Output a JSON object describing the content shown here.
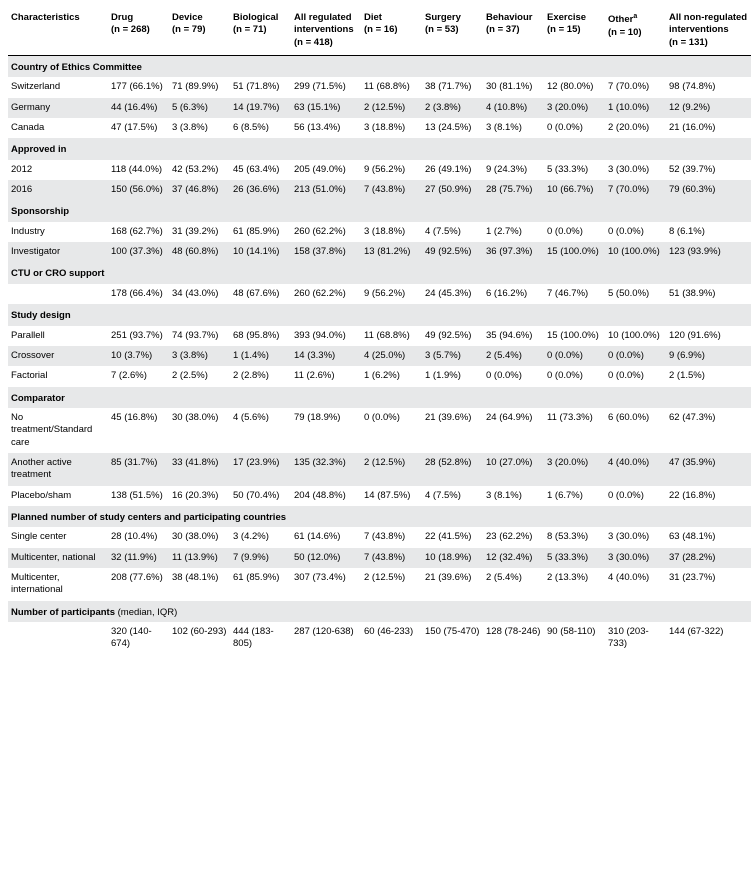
{
  "columns": [
    {
      "label": "Characteristics",
      "sub": ""
    },
    {
      "label": "Drug",
      "sub": "(n = 268)"
    },
    {
      "label": "Device",
      "sub": "(n = 79)"
    },
    {
      "label": "Biological",
      "sub": "(n = 71)"
    },
    {
      "label": "All regulated interventions",
      "sub": "(n = 418)"
    },
    {
      "label": "Diet",
      "sub": "(n = 16)"
    },
    {
      "label": "Surgery",
      "sub": "(n = 53)"
    },
    {
      "label": "Behaviour",
      "sub": "(n = 37)"
    },
    {
      "label": "Exercise",
      "sub": "(n = 15)"
    },
    {
      "label": "Other",
      "sub": "(n = 10)",
      "sup": "a"
    },
    {
      "label": "All non-regulated interventions",
      "sub": "(n = 131)"
    }
  ],
  "sections": [
    {
      "title": "Country of Ethics Committee",
      "rows": [
        {
          "alt": false,
          "cells": [
            "Switzerland",
            "177 (66.1%)",
            "71 (89.9%)",
            "51 (71.8%)",
            "299 (71.5%)",
            "11 (68.8%)",
            "38 (71.7%)",
            "30 (81.1%)",
            "12 (80.0%)",
            "7 (70.0%)",
            "98 (74.8%)"
          ]
        },
        {
          "alt": true,
          "cells": [
            "Germany",
            "44 (16.4%)",
            "5 (6.3%)",
            "14 (19.7%)",
            "63 (15.1%)",
            "2 (12.5%)",
            "2 (3.8%)",
            "4 (10.8%)",
            "3 (20.0%)",
            "1 (10.0%)",
            "12 (9.2%)"
          ]
        },
        {
          "alt": false,
          "cells": [
            "Canada",
            "47 (17.5%)",
            "3 (3.8%)",
            "6 (8.5%)",
            "56 (13.4%)",
            "3 (18.8%)",
            "13 (24.5%)",
            "3 (8.1%)",
            "0 (0.0%)",
            "2 (20.0%)",
            "21 (16.0%)"
          ]
        }
      ]
    },
    {
      "title": "Approved in",
      "rows": [
        {
          "alt": false,
          "cells": [
            "2012",
            "118 (44.0%)",
            "42 (53.2%)",
            "45 (63.4%)",
            "205 (49.0%)",
            "9 (56.2%)",
            "26 (49.1%)",
            "9 (24.3%)",
            "5 (33.3%)",
            "3 (30.0%)",
            "52 (39.7%)"
          ]
        },
        {
          "alt": true,
          "cells": [
            "2016",
            "150 (56.0%)",
            "37 (46.8%)",
            "26 (36.6%)",
            "213 (51.0%)",
            "7 (43.8%)",
            "27 (50.9%)",
            "28 (75.7%)",
            "10 (66.7%)",
            "7 (70.0%)",
            "79 (60.3%)"
          ]
        }
      ]
    },
    {
      "title": "Sponsorship",
      "rows": [
        {
          "alt": false,
          "cells": [
            "Industry",
            "168 (62.7%)",
            "31 (39.2%)",
            "61 (85.9%)",
            "260 (62.2%)",
            "3 (18.8%)",
            "4 (7.5%)",
            "1 (2.7%)",
            "0 (0.0%)",
            "0 (0.0%)",
            "8 (6.1%)"
          ]
        },
        {
          "alt": true,
          "cells": [
            "Investigator",
            "100 (37.3%)",
            "48 (60.8%)",
            "10 (14.1%)",
            "158 (37.8%)",
            "13 (81.2%)",
            "49 (92.5%)",
            "36 (97.3%)",
            "15 (100.0%)",
            "10 (100.0%)",
            "123 (93.9%)"
          ]
        }
      ]
    },
    {
      "title": "CTU or CRO support",
      "rows": [
        {
          "alt": false,
          "cells": [
            "",
            "178 (66.4%)",
            "34 (43.0%)",
            "48 (67.6%)",
            "260 (62.2%)",
            "9 (56.2%)",
            "24 (45.3%)",
            "6 (16.2%)",
            "7 (46.7%)",
            "5 (50.0%)",
            "51 (38.9%)"
          ]
        }
      ]
    },
    {
      "title": "Study design",
      "rows": [
        {
          "alt": false,
          "cells": [
            "Parallell",
            "251 (93.7%)",
            "74 (93.7%)",
            "68 (95.8%)",
            "393 (94.0%)",
            "11 (68.8%)",
            "49 (92.5%)",
            "35 (94.6%)",
            "15 (100.0%)",
            "10 (100.0%)",
            "120 (91.6%)"
          ]
        },
        {
          "alt": true,
          "cells": [
            "Crossover",
            "10 (3.7%)",
            "3 (3.8%)",
            "1 (1.4%)",
            "14 (3.3%)",
            "4 (25.0%)",
            "3 (5.7%)",
            "2 (5.4%)",
            "0 (0.0%)",
            "0 (0.0%)",
            "9 (6.9%)"
          ]
        },
        {
          "alt": false,
          "cells": [
            "Factorial",
            "7 (2.6%)",
            "2 (2.5%)",
            "2 (2.8%)",
            "11 (2.6%)",
            "1 (6.2%)",
            "1 (1.9%)",
            "0 (0.0%)",
            "0 (0.0%)",
            "0 (0.0%)",
            "2 (1.5%)"
          ]
        }
      ]
    },
    {
      "title": "Comparator",
      "rows": [
        {
          "alt": false,
          "cells": [
            "No treatment/Standard care",
            "45 (16.8%)",
            "30 (38.0%)",
            "4 (5.6%)",
            "79 (18.9%)",
            "0 (0.0%)",
            "21 (39.6%)",
            "24 (64.9%)",
            "11 (73.3%)",
            "6 (60.0%)",
            "62 (47.3%)"
          ]
        },
        {
          "alt": true,
          "cells": [
            "Another active treatment",
            "85 (31.7%)",
            "33 (41.8%)",
            "17 (23.9%)",
            "135 (32.3%)",
            "2 (12.5%)",
            "28 (52.8%)",
            "10 (27.0%)",
            "3 (20.0%)",
            "4 (40.0%)",
            "47 (35.9%)"
          ]
        },
        {
          "alt": false,
          "cells": [
            "Placebo/sham",
            "138 (51.5%)",
            "16 (20.3%)",
            "50 (70.4%)",
            "204 (48.8%)",
            "14 (87.5%)",
            "4 (7.5%)",
            "3 (8.1%)",
            "1 (6.7%)",
            "0 (0.0%)",
            "22 (16.8%)"
          ]
        }
      ]
    },
    {
      "title": "Planned number of study centers and participating countries",
      "rows": [
        {
          "alt": false,
          "cells": [
            "Single center",
            "28 (10.4%)",
            "30 (38.0%)",
            "3 (4.2%)",
            "61 (14.6%)",
            "7 (43.8%)",
            "22 (41.5%)",
            "23 (62.2%)",
            "8 (53.3%)",
            "3 (30.0%)",
            "63 (48.1%)"
          ]
        },
        {
          "alt": true,
          "cells": [
            "Multicenter, national",
            "32 (11.9%)",
            "11 (13.9%)",
            "7 (9.9%)",
            "50 (12.0%)",
            "7 (43.8%)",
            "10 (18.9%)",
            "12 (32.4%)",
            "5 (33.3%)",
            "3 (30.0%)",
            "37 (28.2%)"
          ]
        },
        {
          "alt": false,
          "cells": [
            "Multicenter, international",
            "208 (77.6%)",
            "38 (48.1%)",
            "61 (85.9%)",
            "307 (73.4%)",
            "2 (12.5%)",
            "21 (39.6%)",
            "2 (5.4%)",
            "2 (13.3%)",
            "4 (40.0%)",
            "31 (23.7%)"
          ]
        }
      ]
    },
    {
      "title": "Number of participants",
      "title_suffix": " (median, IQR)",
      "rows": [
        {
          "alt": false,
          "cells": [
            "",
            "320 (140-674)",
            "102 (60-293)",
            "444 (183-805)",
            "287 (120-638)",
            "60 (46-233)",
            "150 (75-470)",
            "128 (78-246)",
            "90 (58-110)",
            "310 (203-733)",
            "144 (67-322)"
          ]
        }
      ]
    }
  ]
}
